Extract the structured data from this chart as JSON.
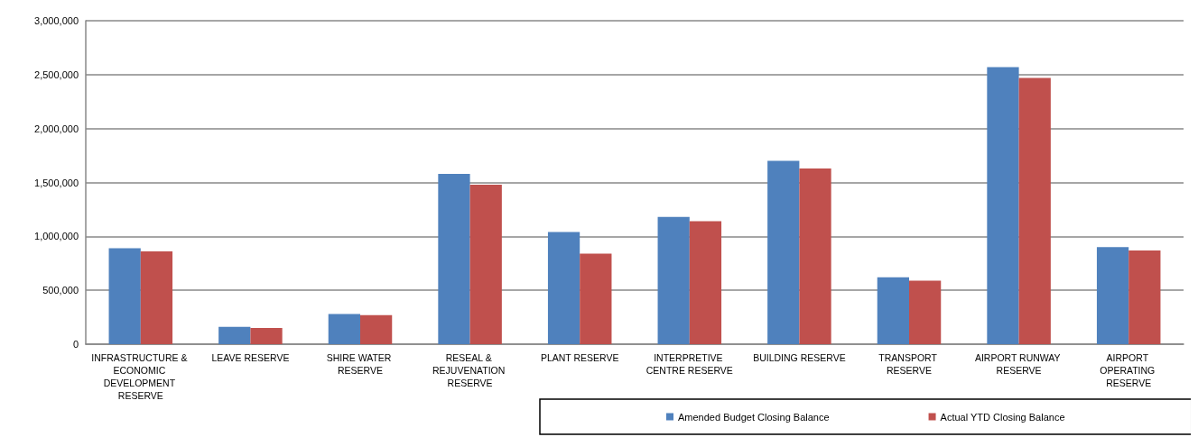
{
  "chart_data": {
    "type": "bar",
    "categories": [
      "INFRASTRUCTURE & ECONOMIC DEVELOPMENT RESERVE",
      "LEAVE RESERVE",
      "SHIRE WATER RESERVE",
      "RESEAL & REJUVENATION RESERVE",
      "PLANT RESERVE",
      "INTERPRETIVE CENTRE RESERVE",
      "BUILDING RESERVE",
      "TRANSPORT RESERVE",
      "AIRPORT RUNWAY RESERVE",
      "AIRPORT OPERATING RESERVE"
    ],
    "series": [
      {
        "name": "Amended Budget Closing Balance",
        "color": "#4f81bd",
        "values": [
          890000,
          160000,
          280000,
          1580000,
          1040000,
          1180000,
          1700000,
          620000,
          2570000,
          900000
        ]
      },
      {
        "name": "Actual YTD Closing Balance",
        "color": "#c0504d",
        "values": [
          860000,
          150000,
          270000,
          1480000,
          840000,
          1140000,
          1630000,
          590000,
          2470000,
          870000
        ]
      }
    ],
    "ylim": [
      0,
      3000000
    ],
    "yticks": [
      {
        "value": 0,
        "label": "0"
      },
      {
        "value": 500000,
        "label": "500,000"
      },
      {
        "value": 1000000,
        "label": "1,000,000"
      },
      {
        "value": 1500000,
        "label": "1,500,000"
      },
      {
        "value": 2000000,
        "label": "2,000,000"
      },
      {
        "value": 2500000,
        "label": "2,500,000"
      },
      {
        "value": 3000000,
        "label": "3,000,000"
      }
    ],
    "grid": "y",
    "legend": "bottom"
  }
}
